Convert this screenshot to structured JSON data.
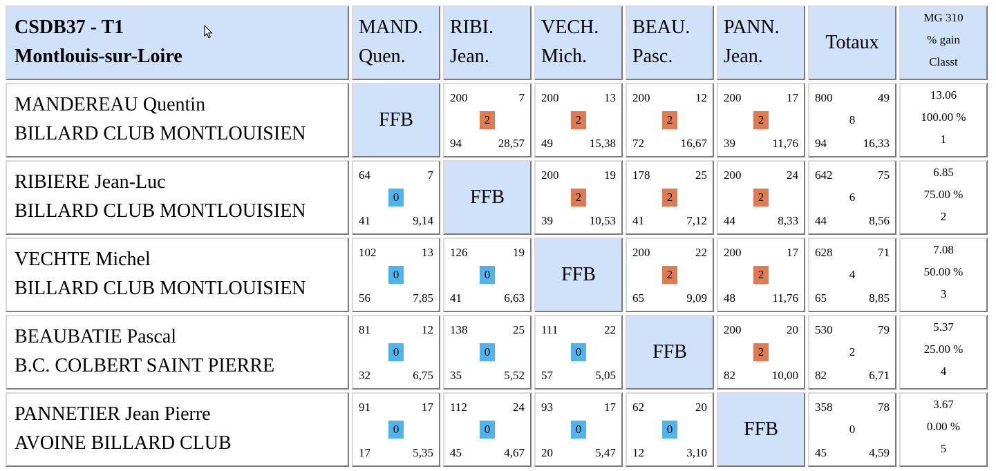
{
  "header": {
    "title_line1": "CSDB37 - T1",
    "title_line2": "Montlouis-sur-Loire",
    "players": [
      {
        "a": "MAND.",
        "b": "Quen."
      },
      {
        "a": "RIBI.",
        "b": "Jean."
      },
      {
        "a": "VECH.",
        "b": "Mich."
      },
      {
        "a": "BEAU.",
        "b": "Pasc."
      },
      {
        "a": "PANN.",
        "b": "Jean."
      }
    ],
    "totals_label": "Totaux",
    "mg_line1": "MG 310",
    "mg_line2": "% gain",
    "mg_line3": "Classt"
  },
  "ffb_label": "FFB",
  "colors": {
    "header_bg": "#cfe2fa",
    "win": "#e07b4f",
    "loss": "#4fb3ec"
  },
  "rows": [
    {
      "name": "MANDEREAU Quentin",
      "club": "BILLARD CLUB MONTLOUISIEN",
      "cells": [
        null,
        {
          "tl": "200",
          "tr": "7",
          "pts": "2",
          "bl": "94",
          "br": "28,57"
        },
        {
          "tl": "200",
          "tr": "13",
          "pts": "2",
          "bl": "49",
          "br": "15,38"
        },
        {
          "tl": "200",
          "tr": "12",
          "pts": "2",
          "bl": "72",
          "br": "16,67"
        },
        {
          "tl": "200",
          "tr": "17",
          "pts": "2",
          "bl": "39",
          "br": "11,76"
        }
      ],
      "total": {
        "tl": "800",
        "tr": "49",
        "pts": "8",
        "bl": "94",
        "br": "16,33"
      },
      "mg": "13.06",
      "pct": "100.00 %",
      "rank": "1"
    },
    {
      "name": "RIBIERE Jean-Luc",
      "club": "BILLARD CLUB MONTLOUISIEN",
      "cells": [
        {
          "tl": "64",
          "tr": "7",
          "pts": "0",
          "bl": "41",
          "br": "9,14"
        },
        null,
        {
          "tl": "200",
          "tr": "19",
          "pts": "2",
          "bl": "39",
          "br": "10,53"
        },
        {
          "tl": "178",
          "tr": "25",
          "pts": "2",
          "bl": "41",
          "br": "7,12"
        },
        {
          "tl": "200",
          "tr": "24",
          "pts": "2",
          "bl": "44",
          "br": "8,33"
        }
      ],
      "total": {
        "tl": "642",
        "tr": "75",
        "pts": "6",
        "bl": "44",
        "br": "8,56"
      },
      "mg": "6.85",
      "pct": "75.00 %",
      "rank": "2"
    },
    {
      "name": "VECHTE Michel",
      "club": "BILLARD CLUB MONTLOUISIEN",
      "cells": [
        {
          "tl": "102",
          "tr": "13",
          "pts": "0",
          "bl": "56",
          "br": "7,85"
        },
        {
          "tl": "126",
          "tr": "19",
          "pts": "0",
          "bl": "41",
          "br": "6,63"
        },
        null,
        {
          "tl": "200",
          "tr": "22",
          "pts": "2",
          "bl": "65",
          "br": "9,09"
        },
        {
          "tl": "200",
          "tr": "17",
          "pts": "2",
          "bl": "48",
          "br": "11,76"
        }
      ],
      "total": {
        "tl": "628",
        "tr": "71",
        "pts": "4",
        "bl": "65",
        "br": "8,85"
      },
      "mg": "7.08",
      "pct": "50.00 %",
      "rank": "3"
    },
    {
      "name": "BEAUBATIE Pascal",
      "club": "B.C. COLBERT SAINT PIERRE",
      "cells": [
        {
          "tl": "81",
          "tr": "12",
          "pts": "0",
          "bl": "32",
          "br": "6,75"
        },
        {
          "tl": "138",
          "tr": "25",
          "pts": "0",
          "bl": "35",
          "br": "5,52"
        },
        {
          "tl": "111",
          "tr": "22",
          "pts": "0",
          "bl": "57",
          "br": "5,05"
        },
        null,
        {
          "tl": "200",
          "tr": "20",
          "pts": "2",
          "bl": "82",
          "br": "10,00"
        }
      ],
      "total": {
        "tl": "530",
        "tr": "79",
        "pts": "2",
        "bl": "82",
        "br": "6,71"
      },
      "mg": "5.37",
      "pct": "25.00 %",
      "rank": "4"
    },
    {
      "name": "PANNETIER Jean Pierre",
      "club": "AVOINE BILLARD CLUB",
      "cells": [
        {
          "tl": "91",
          "tr": "17",
          "pts": "0",
          "bl": "17",
          "br": "5,35"
        },
        {
          "tl": "112",
          "tr": "24",
          "pts": "0",
          "bl": "45",
          "br": "4,67"
        },
        {
          "tl": "93",
          "tr": "17",
          "pts": "0",
          "bl": "20",
          "br": "5,47"
        },
        {
          "tl": "62",
          "tr": "20",
          "pts": "0",
          "bl": "12",
          "br": "3,10"
        },
        null
      ],
      "total": {
        "tl": "358",
        "tr": "78",
        "pts": "0",
        "bl": "45",
        "br": "4,59"
      },
      "mg": "3.67",
      "pct": "0.00 %",
      "rank": "5"
    }
  ]
}
